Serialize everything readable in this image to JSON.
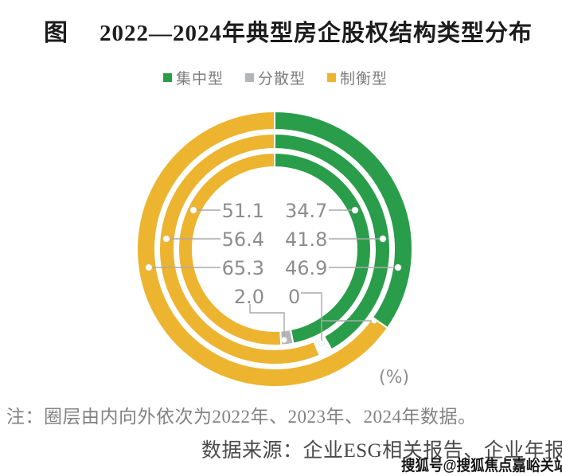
{
  "title": {
    "prefix": "图",
    "text": "2022—2024年典型房企股权结构类型分布"
  },
  "legend": [
    {
      "label": "集中型",
      "color": "#2a9d4b"
    },
    {
      "label": "分散型",
      "color": "#b3b6b8"
    },
    {
      "label": "制衡型",
      "color": "#ecb42f"
    }
  ],
  "chart_data": {
    "type": "donut",
    "subtype": "multi-ring",
    "unit": "(%)",
    "legend_position": "top",
    "categories": [
      "集中型",
      "分散型",
      "制衡型"
    ],
    "colors": {
      "集中型": "#2a9d4b",
      "分散型": "#b3b6b8",
      "制衡型": "#ecb42f"
    },
    "rings": [
      {
        "year": "2022",
        "position": "inner",
        "集中型": 46.9,
        "分散型": 2.0,
        "制衡型": 51.1
      },
      {
        "year": "2023",
        "position": "middle",
        "集中型": 41.8,
        "分散型": 0,
        "制衡型": 56.4
      },
      {
        "year": "2024",
        "position": "outer",
        "集中型": 34.7,
        "分散型": 0,
        "制衡型": 65.3
      }
    ],
    "callouts": {
      "left": [
        "51.1",
        "56.4",
        "65.3",
        "2.0"
      ],
      "right": [
        "34.7",
        "41.8",
        "46.9",
        "0"
      ]
    }
  },
  "note": "注：圈层由内向外依次为2022年、2023年、2024年数据。",
  "source": "数据来源：企业ESG相关报告、企业年报。",
  "watermark": "搜狐号@搜狐焦点嘉峪关站"
}
